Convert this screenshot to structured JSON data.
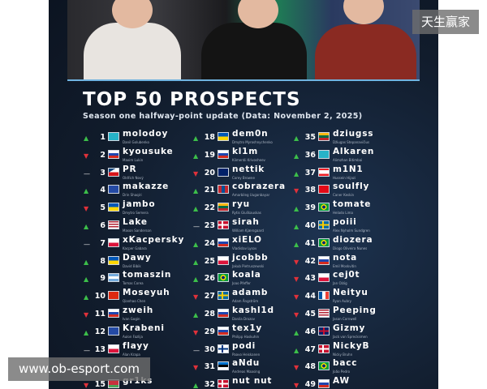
{
  "poster": {
    "title": "TOP 50 PROSPECTS",
    "subtitle": "Season one halfway-point update (Data: November 2, 2025)"
  },
  "watermarks": {
    "top_right": "天生赢家",
    "bottom_left": "www.ob-esport.com"
  },
  "columns": [
    [
      {
        "rank": "1",
        "move": "up",
        "flag": "kz",
        "name": "molodoy",
        "real": "Danil Golubenko"
      },
      {
        "rank": "2",
        "move": "down",
        "flag": "ru",
        "name": "kyousuke",
        "real": "Maxim Lukin"
      },
      {
        "rank": "3",
        "move": "same",
        "flag": "cz",
        "name": "PR",
        "real": "Oldřich Nový"
      },
      {
        "rank": "4",
        "move": "up",
        "flag": "xk",
        "name": "makazze",
        "real": "Drin Shaqiri"
      },
      {
        "rank": "5",
        "move": "down",
        "flag": "ua",
        "name": "jambo",
        "real": "Dmytro Semera"
      },
      {
        "rank": "6",
        "move": "up",
        "flag": "us",
        "name": "Lake",
        "real": "Mason Sanderson"
      },
      {
        "rank": "7",
        "move": "same",
        "flag": "pl",
        "name": "xKacpersky",
        "real": "Kacper Gabara"
      },
      {
        "rank": "8",
        "move": "up",
        "flag": "ua",
        "name": "Dawy",
        "real": "David Bibik"
      },
      {
        "rank": "9",
        "move": "up",
        "flag": "ar",
        "name": "tomaszin",
        "real": "Tomas Corea"
      },
      {
        "rank": "10",
        "move": "up",
        "flag": "cn",
        "name": "Moseyuh",
        "real": "Qianhao Chen"
      },
      {
        "rank": "11",
        "move": "down",
        "flag": "ru",
        "name": "zweih",
        "real": "Ivan Gogin"
      },
      {
        "rank": "12",
        "move": "up",
        "flag": "xk",
        "name": "Krabeni",
        "real": "Aulon Fazlija"
      },
      {
        "rank": "13",
        "move": "same",
        "flag": "pl",
        "name": "flayy",
        "real": "Alan Krapa"
      },
      {
        "rank": "",
        "move": "",
        "flag": "",
        "name": "",
        "real": ""
      },
      {
        "rank": "15",
        "move": "down",
        "flag": "by",
        "name": "gr1ks",
        "real": ""
      }
    ],
    [
      {
        "rank": "18",
        "move": "up",
        "flag": "ua",
        "name": "dem0n",
        "real": "Dmytro Myroshnychenko"
      },
      {
        "rank": "19",
        "move": "up",
        "flag": "ru",
        "name": "kl1m",
        "real": "Klimentii Krivosheev"
      },
      {
        "rank": "20",
        "move": "down",
        "flag": "nz",
        "name": "nettik",
        "real": "Corey Browne"
      },
      {
        "rank": "21",
        "move": "up",
        "flag": "mn",
        "name": "cobrazera",
        "real": "Amarbileg Uuganbayar"
      },
      {
        "rank": "22",
        "move": "up",
        "flag": "lt",
        "name": "ryu",
        "real": "Rytis Gluškauskas"
      },
      {
        "rank": "23",
        "move": "same",
        "flag": "dk",
        "name": "sirah",
        "real": "William Kjærsgaard"
      },
      {
        "rank": "24",
        "move": "up",
        "flag": "ru",
        "name": "xiELO",
        "real": "Vladislav Lysov"
      },
      {
        "rank": "25",
        "move": "up",
        "flag": "pl",
        "name": "jcobbb",
        "real": "Jakub Pietruszewski"
      },
      {
        "rank": "26",
        "move": "up",
        "flag": "br",
        "name": "koala",
        "real": "Joao Pfeffer"
      },
      {
        "rank": "27",
        "move": "down",
        "flag": "se",
        "name": "adamb",
        "real": "Adam Ångström"
      },
      {
        "rank": "28",
        "move": "up",
        "flag": "ru",
        "name": "kashl1d",
        "real": "Danila Drozov"
      },
      {
        "rank": "29",
        "move": "down",
        "flag": "ru",
        "name": "tex1y",
        "real": "Philipp Haskuhin"
      },
      {
        "rank": "30",
        "move": "same",
        "flag": "fi",
        "name": "podi",
        "real": "Paavo Heiskanen"
      },
      {
        "rank": "31",
        "move": "down",
        "flag": "ee",
        "name": "aNdu",
        "real": "Andreas Maasing"
      },
      {
        "rank": "32",
        "move": "up",
        "flag": "dk",
        "name": "nut nut",
        "real": ""
      }
    ],
    [
      {
        "rank": "35",
        "move": "up",
        "flag": "lt",
        "name": "dziugss",
        "real": "Džiugas Stepanavičius"
      },
      {
        "rank": "36",
        "move": "up",
        "flag": "kz",
        "name": "Alkaren",
        "real": "Alimzhan Bitimbai"
      },
      {
        "rank": "37",
        "move": "up",
        "flag": "lb",
        "name": "m1N1",
        "real": "Hussein Hijazi"
      },
      {
        "rank": "38",
        "move": "down",
        "flag": "tr",
        "name": "soulfly",
        "real": "Caner Keskin"
      },
      {
        "rank": "39",
        "move": "up",
        "flag": "br",
        "name": "tomate",
        "real": "Helado Lima"
      },
      {
        "rank": "40",
        "move": "up",
        "flag": "se",
        "name": "poiii",
        "real": "Alex Nyholm Sundgren"
      },
      {
        "rank": "41",
        "move": "up",
        "flag": "br",
        "name": "diozera",
        "real": "Diogo Oliveira Nunes"
      },
      {
        "rank": "42",
        "move": "down",
        "flag": "ru",
        "name": "nota",
        "real": "Emil Moskvitin"
      },
      {
        "rank": "43",
        "move": "down",
        "flag": "pl",
        "name": "cej0t",
        "real": "Jan Ożóg"
      },
      {
        "rank": "44",
        "move": "down",
        "flag": "fr",
        "name": "Neityu",
        "real": "Ryan Aubry"
      },
      {
        "rank": "45",
        "move": "down",
        "flag": "us",
        "name": "Peeping",
        "real": "Jason Cornwell"
      },
      {
        "rank": "46",
        "move": "up",
        "flag": "gb",
        "name": "Gizmy",
        "real": "Jack van Sprecksmen"
      },
      {
        "rank": "47",
        "move": "up",
        "flag": "dk",
        "name": "NickyB",
        "real": "Nicky Bruhn"
      },
      {
        "rank": "48",
        "move": "down",
        "flag": "br",
        "name": "bacc",
        "real": "João Pedro"
      },
      {
        "rank": "49",
        "move": "down",
        "flag": "ru",
        "name": "AW",
        "real": ""
      }
    ]
  ],
  "colors": {
    "up": "#3cbf4a",
    "down": "#e0313a",
    "background": "#111c2c"
  }
}
